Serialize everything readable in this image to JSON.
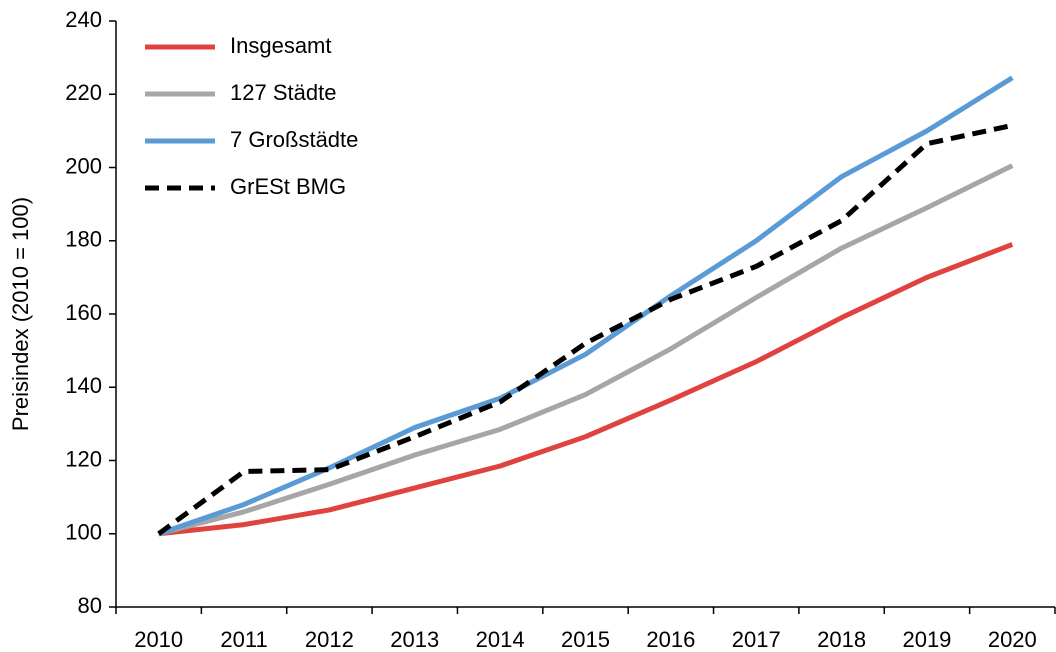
{
  "chart_data": {
    "type": "line",
    "ylabel": "Preisindex (2010 = 100)",
    "categories": [
      "2010",
      "2011",
      "2012",
      "2013",
      "2014",
      "2015",
      "2016",
      "2017",
      "2018",
      "2019",
      "2020"
    ],
    "series": [
      {
        "name": "Insgesamt",
        "color": "#e0433f",
        "style": "solid",
        "values": [
          100,
          102.5,
          106.5,
          112.5,
          118.5,
          126.5,
          136.5,
          147,
          159,
          170,
          179
        ]
      },
      {
        "name": "127 Städte",
        "color": "#a6a6a6",
        "style": "solid",
        "values": [
          100,
          106,
          113.5,
          121.5,
          128.5,
          138,
          150.5,
          164.5,
          178,
          189,
          200.5
        ]
      },
      {
        "name": "7 Großstädte",
        "color": "#5b9bd5",
        "style": "solid",
        "values": [
          100,
          108,
          118,
          129,
          137,
          149,
          165,
          180,
          197.5,
          210,
          224.5
        ]
      },
      {
        "name": "GrESt BMG",
        "color": "#000000",
        "style": "dashed",
        "values": [
          100,
          117,
          117.5,
          126.5,
          136,
          152,
          164,
          173,
          185.5,
          206.5,
          211.5
        ]
      }
    ],
    "ylim": [
      80,
      240
    ],
    "yticks": [
      80,
      100,
      120,
      140,
      160,
      180,
      200,
      220,
      240
    ],
    "grid": false,
    "legend": "upper left"
  }
}
